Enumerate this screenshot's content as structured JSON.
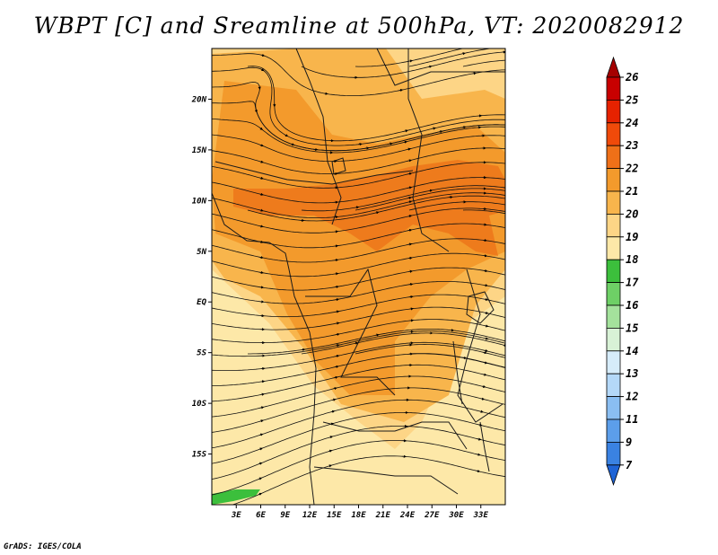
{
  "title": "WBPT [C] and Sreamline at 500hPa, VT: 2020082912",
  "credit": "GrADS: IGES/COLA",
  "map": {
    "lon_range": [
      0,
      36
    ],
    "lat_range": [
      -20,
      25
    ],
    "x_ticks": [
      "3E",
      "6E",
      "9E",
      "12E",
      "15E",
      "18E",
      "21E",
      "24E",
      "27E",
      "30E",
      "33E"
    ],
    "y_ticks": [
      "20N",
      "15N",
      "10N",
      "5N",
      "EQ",
      "5S",
      "10S",
      "15S"
    ],
    "field": "wet bulb potential temperature",
    "overlay": "streamlines",
    "colors": {
      "band_18_19": "#fde8a8",
      "band_19_20": "#fdd586",
      "band_20_21": "#f8b54c",
      "band_21_22": "#f39a2c",
      "band_22_23": "#ee7b1c",
      "band_16_17": "#6ed066",
      "band_17_18": "#3cbf3c"
    }
  },
  "colorbar": {
    "labels": [
      "26",
      "25",
      "24",
      "23",
      "22",
      "21",
      "20",
      "19",
      "18",
      "17",
      "16",
      "15",
      "14",
      "13",
      "12",
      "11",
      "9",
      "7"
    ],
    "colors": [
      "#a50000",
      "#c80000",
      "#e62200",
      "#f04a0a",
      "#ef7018",
      "#f39a2c",
      "#f8b54c",
      "#fdd586",
      "#fde8a8",
      "#3cbf3c",
      "#6ed066",
      "#a4e29c",
      "#d8f2d6",
      "#d6ecfa",
      "#b4d8f8",
      "#8abef2",
      "#5c9eea",
      "#3a82e2",
      "#1f64d6"
    ]
  }
}
